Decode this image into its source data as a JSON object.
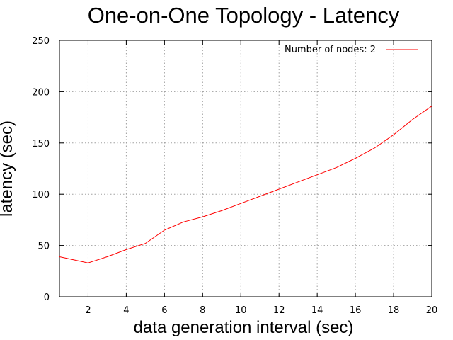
{
  "chart_data": {
    "type": "line",
    "title": "One-on-One Topology - Latency",
    "xlabel": "data generation interval (sec)",
    "ylabel": "latency (sec)",
    "xlim": [
      0.5,
      20
    ],
    "ylim": [
      0,
      250
    ],
    "xticks": [
      2,
      4,
      6,
      8,
      10,
      12,
      14,
      16,
      18,
      20
    ],
    "yticks": [
      0,
      50,
      100,
      150,
      200,
      250
    ],
    "grid": true,
    "legend_position": "top-right",
    "series": [
      {
        "name": "Number of nodes: 2",
        "color": "#ff0000",
        "x": [
          0.5,
          1,
          2,
          3,
          4,
          5,
          6,
          7,
          8,
          9,
          10,
          11,
          12,
          13,
          14,
          15,
          16,
          17,
          18,
          19,
          20
        ],
        "y": [
          39,
          37,
          33,
          39,
          46,
          52,
          65,
          73,
          78,
          84,
          91,
          98,
          105,
          112,
          119,
          126,
          135,
          145,
          158,
          173,
          186
        ]
      }
    ]
  }
}
